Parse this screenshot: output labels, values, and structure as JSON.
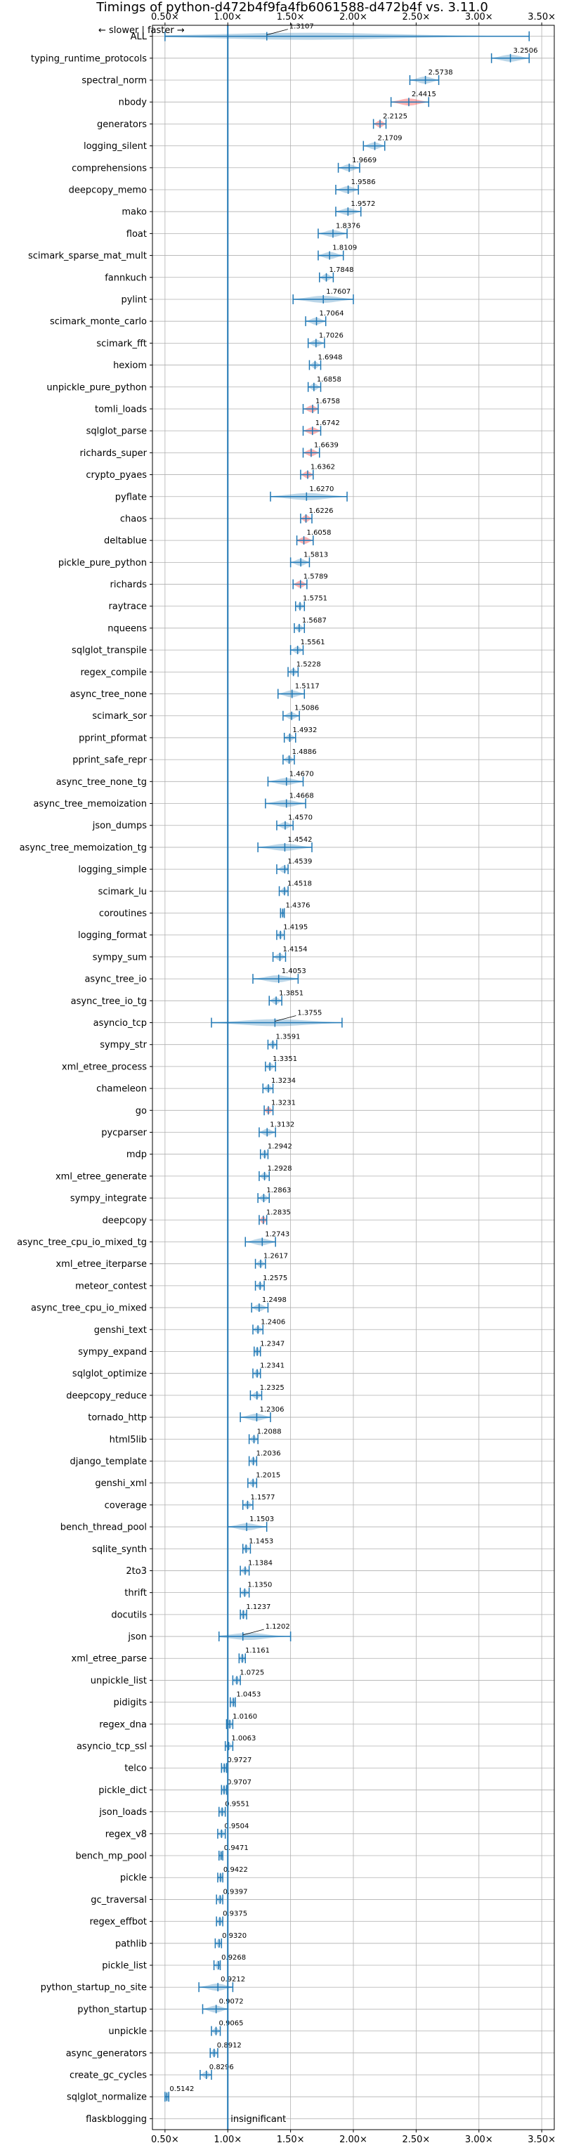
{
  "chart_data": {
    "type": "violin",
    "title": "Timings of python-d472b4f9fa4fb6061588-d472b4f vs. 3.11.0",
    "xlabel": "",
    "ylabel": "",
    "xlim": [
      0.4,
      3.6
    ],
    "xticks": [
      0.5,
      1.0,
      1.5,
      2.0,
      2.5,
      3.0,
      3.5
    ],
    "xtick_labels": [
      "0.50×",
      "1.00×",
      "1.50×",
      "2.00×",
      "2.50×",
      "3.00×",
      "3.50×"
    ],
    "direction_note": "← slower | faster →",
    "reference_line": 1.0,
    "grid": true,
    "colors": {
      "faster": "#1f77b4",
      "regression": "#ff0000",
      "violin_fill": "#1f77b4",
      "reference": "#1f77b4",
      "grid": "#b0b0b0"
    },
    "categories": [
      "ALL",
      "typing_runtime_protocols",
      "spectral_norm",
      "nbody",
      "generators",
      "logging_silent",
      "comprehensions",
      "deepcopy_memo",
      "mako",
      "float",
      "scimark_sparse_mat_mult",
      "fannkuch",
      "pylint",
      "scimark_monte_carlo",
      "scimark_fft",
      "hexiom",
      "unpickle_pure_python",
      "tomli_loads",
      "sqlglot_parse",
      "richards_super",
      "crypto_pyaes",
      "pyflate",
      "chaos",
      "deltablue",
      "pickle_pure_python",
      "richards",
      "raytrace",
      "nqueens",
      "sqlglot_transpile",
      "regex_compile",
      "async_tree_none",
      "scimark_sor",
      "pprint_pformat",
      "pprint_safe_repr",
      "async_tree_none_tg",
      "async_tree_memoization",
      "json_dumps",
      "async_tree_memoization_tg",
      "logging_simple",
      "scimark_lu",
      "coroutines",
      "logging_format",
      "sympy_sum",
      "async_tree_io",
      "async_tree_io_tg",
      "asyncio_tcp",
      "sympy_str",
      "xml_etree_process",
      "chameleon",
      "go",
      "pycparser",
      "mdp",
      "xml_etree_generate",
      "sympy_integrate",
      "deepcopy",
      "async_tree_cpu_io_mixed_tg",
      "xml_etree_iterparse",
      "meteor_contest",
      "async_tree_cpu_io_mixed",
      "genshi_text",
      "sympy_expand",
      "sqlglot_optimize",
      "deepcopy_reduce",
      "tornado_http",
      "html5lib",
      "django_template",
      "genshi_xml",
      "coverage",
      "bench_thread_pool",
      "sqlite_synth",
      "2to3",
      "thrift",
      "docutils",
      "json",
      "xml_etree_parse",
      "unpickle_list",
      "pidigits",
      "regex_dna",
      "asyncio_tcp_ssl",
      "telco",
      "pickle_dict",
      "json_loads",
      "regex_v8",
      "bench_mp_pool",
      "pickle",
      "gc_traversal",
      "regex_effbot",
      "pathlib",
      "pickle_list",
      "python_startup_no_site",
      "python_startup",
      "unpickle",
      "async_generators",
      "create_gc_cycles",
      "sqlglot_normalize",
      "flaskblogging"
    ],
    "values": [
      1.3107,
      3.2506,
      2.5738,
      2.4415,
      2.2125,
      2.1709,
      1.9669,
      1.9586,
      1.9572,
      1.8376,
      1.8109,
      1.7848,
      1.7607,
      1.7064,
      1.7026,
      1.6948,
      1.6858,
      1.6758,
      1.6742,
      1.6639,
      1.6362,
      1.627,
      1.6226,
      1.6058,
      1.5813,
      1.5789,
      1.5751,
      1.5687,
      1.5561,
      1.5228,
      1.5117,
      1.5086,
      1.4932,
      1.4886,
      1.467,
      1.4668,
      1.457,
      1.4542,
      1.4539,
      1.4518,
      1.4376,
      1.4195,
      1.4154,
      1.4053,
      1.3851,
      1.3755,
      1.3591,
      1.3351,
      1.3234,
      1.3231,
      1.3132,
      1.2942,
      1.2928,
      1.2863,
      1.2835,
      1.2743,
      1.2617,
      1.2575,
      1.2498,
      1.2406,
      1.2347,
      1.2341,
      1.2325,
      1.2306,
      1.2088,
      1.2036,
      1.2015,
      1.1577,
      1.1503,
      1.1453,
      1.1384,
      1.135,
      1.1237,
      1.1202,
      1.1161,
      1.0725,
      1.0453,
      1.016,
      1.0063,
      0.9727,
      0.9707,
      0.9551,
      0.9504,
      0.9471,
      0.9422,
      0.9397,
      0.9375,
      0.932,
      0.9268,
      0.9212,
      0.9072,
      0.9065,
      0.8912,
      0.8296,
      0.5142,
      null
    ],
    "value_labels": [
      "1.3107",
      "3.2506",
      "2.5738",
      "2.4415",
      "2.2125",
      "2.1709",
      "1.9669",
      "1.9586",
      "1.9572",
      "1.8376",
      "1.8109",
      "1.7848",
      "1.7607",
      "1.7064",
      "1.7026",
      "1.6948",
      "1.6858",
      "1.6758",
      "1.6742",
      "1.6639",
      "1.6362",
      "1.6270",
      "1.6226",
      "1.6058",
      "1.5813",
      "1.5789",
      "1.5751",
      "1.5687",
      "1.5561",
      "1.5228",
      "1.5117",
      "1.5086",
      "1.4932",
      "1.4886",
      "1.4670",
      "1.4668",
      "1.4570",
      "1.4542",
      "1.4539",
      "1.4518",
      "1.4376",
      "1.4195",
      "1.4154",
      "1.4053",
      "1.3851",
      "1.3755",
      "1.3591",
      "1.3351",
      "1.3234",
      "1.3231",
      "1.3132",
      "1.2942",
      "1.2928",
      "1.2863",
      "1.2835",
      "1.2743",
      "1.2617",
      "1.2575",
      "1.2498",
      "1.2406",
      "1.2347",
      "1.2341",
      "1.2325",
      "1.2306",
      "1.2088",
      "1.2036",
      "1.2015",
      "1.1577",
      "1.1503",
      "1.1453",
      "1.1384",
      "1.1350",
      "1.1237",
      "1.1202",
      "1.1161",
      "1.0725",
      "1.0453",
      "1.0160",
      "1.0063",
      "0.9727",
      "0.9707",
      "0.9551",
      "0.9504",
      "0.9471",
      "0.9422",
      "0.9397",
      "0.9375",
      "0.9320",
      "0.9268",
      "0.9212",
      "0.9072",
      "0.9065",
      "0.8912",
      "0.8296",
      "0.5142",
      "insignificant"
    ],
    "spread_low": [
      0.5,
      3.1,
      2.45,
      2.3,
      2.16,
      2.08,
      1.88,
      1.86,
      1.86,
      1.72,
      1.72,
      1.73,
      1.52,
      1.62,
      1.64,
      1.65,
      1.64,
      1.6,
      1.6,
      1.6,
      1.58,
      1.34,
      1.58,
      1.55,
      1.5,
      1.52,
      1.54,
      1.53,
      1.5,
      1.48,
      1.4,
      1.44,
      1.45,
      1.44,
      1.32,
      1.3,
      1.39,
      1.24,
      1.39,
      1.41,
      1.42,
      1.39,
      1.36,
      1.2,
      1.33,
      0.87,
      1.32,
      1.3,
      1.28,
      1.29,
      1.25,
      1.26,
      1.25,
      1.24,
      1.25,
      1.14,
      1.22,
      1.22,
      1.19,
      1.2,
      1.21,
      1.2,
      1.18,
      1.1,
      1.17,
      1.17,
      1.16,
      1.12,
      1.0,
      1.12,
      1.1,
      1.1,
      1.1,
      0.93,
      1.09,
      1.04,
      1.02,
      0.99,
      0.98,
      0.95,
      0.95,
      0.93,
      0.92,
      0.93,
      0.92,
      0.91,
      0.91,
      0.9,
      0.89,
      0.77,
      0.8,
      0.87,
      0.86,
      0.78,
      0.5,
      null
    ],
    "spread_high": [
      3.4,
      3.4,
      2.68,
      2.6,
      2.26,
      2.25,
      2.05,
      2.04,
      2.06,
      1.95,
      1.92,
      1.84,
      2.0,
      1.78,
      1.77,
      1.74,
      1.74,
      1.72,
      1.74,
      1.73,
      1.68,
      1.95,
      1.67,
      1.68,
      1.65,
      1.63,
      1.61,
      1.61,
      1.6,
      1.56,
      1.61,
      1.57,
      1.54,
      1.53,
      1.6,
      1.62,
      1.52,
      1.67,
      1.48,
      1.48,
      1.45,
      1.45,
      1.46,
      1.56,
      1.43,
      1.91,
      1.39,
      1.38,
      1.36,
      1.36,
      1.38,
      1.32,
      1.33,
      1.33,
      1.31,
      1.38,
      1.3,
      1.29,
      1.32,
      1.28,
      1.26,
      1.26,
      1.27,
      1.34,
      1.24,
      1.23,
      1.23,
      1.2,
      1.31,
      1.18,
      1.17,
      1.17,
      1.15,
      1.5,
      1.14,
      1.1,
      1.06,
      1.04,
      1.04,
      0.99,
      0.99,
      0.98,
      0.98,
      0.96,
      0.96,
      0.96,
      0.96,
      0.95,
      0.94,
      1.04,
      1.0,
      0.94,
      0.92,
      0.87,
      0.53,
      null
    ],
    "regressions": [
      "nbody",
      "generators",
      "go",
      "deepcopy",
      "tomli_loads",
      "richards_super",
      "sqlglot_parse",
      "crypto_pyaes",
      "chaos",
      "deltablue",
      "richards"
    ],
    "stem_labels": [
      "ALL",
      "asyncio_tcp",
      "json"
    ]
  }
}
